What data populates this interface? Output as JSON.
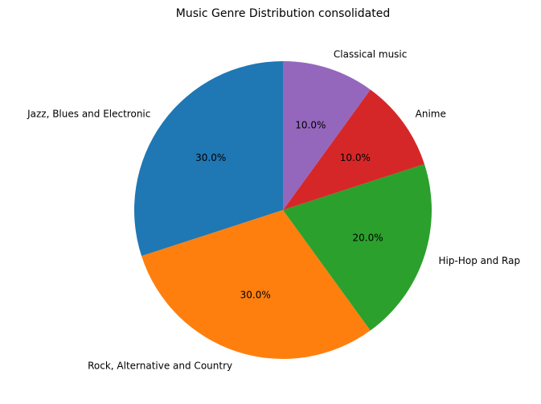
{
  "chart_data": {
    "type": "pie",
    "title": "Music Genre Distribution consolidated",
    "start_angle_deg": 90,
    "direction": "counterclockwise",
    "slices": [
      {
        "label": "Jazz, Blues and Electronic",
        "value": 30.0,
        "pct_text": "30.0%",
        "color": "#1f77b4"
      },
      {
        "label": "Rock, Alternative and Country",
        "value": 30.0,
        "pct_text": "30.0%",
        "color": "#ff7f0e"
      },
      {
        "label": "Hip-Hop and Rap",
        "value": 20.0,
        "pct_text": "20.0%",
        "color": "#2ca02c"
      },
      {
        "label": "Anime",
        "value": 10.0,
        "pct_text": "10.0%",
        "color": "#d62728"
      },
      {
        "label": "Classical music",
        "value": 10.0,
        "pct_text": "10.0%",
        "color": "#9467bd"
      }
    ]
  }
}
